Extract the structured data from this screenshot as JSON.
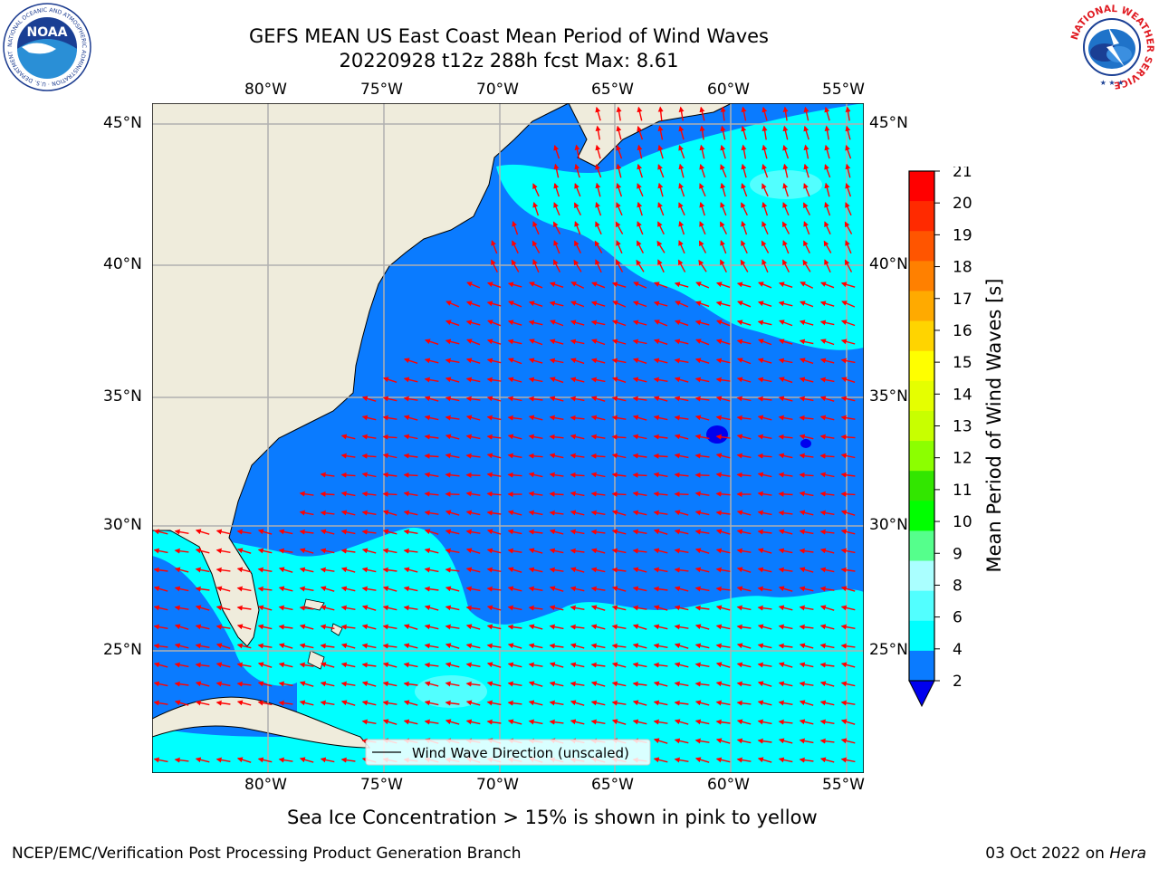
{
  "header": {
    "title_line1": "GEFS MEAN US East Coast Mean Period of Wind Waves",
    "title_line2": "20220928 t12z 288h fcst   Max: 8.61",
    "noaa_logo": {
      "center_text": "NOAA",
      "ring_text": "NATIONAL OCEANIC AND ATMOSPHERIC ADMINISTRATION · U.S. DEPARTMENT OF COMMERCE"
    },
    "nws_logo": {
      "ring_text": "NATIONAL WEATHER SERVICE"
    }
  },
  "map": {
    "lon_labels": [
      "80°W",
      "75°W",
      "70°W",
      "65°W",
      "60°W",
      "55°W"
    ],
    "lat_labels": [
      "45°N",
      "40°N",
      "35°N",
      "30°N",
      "25°N"
    ],
    "legend_label": "Wind Wave Direction (unscaled)",
    "colors": {
      "land": "#efecdc",
      "period_2_4": "#0a7bff",
      "period_4_6": "#00ffff",
      "period_6_8": "#52ffff",
      "period_lt_2": "#0000ee",
      "arrows": "#ff0000",
      "gridlines": "#b0b0b0"
    }
  },
  "colorbar": {
    "label": "Mean Period of Wind Waves [s]",
    "ticks": [
      "21",
      "20",
      "19",
      "18",
      "17",
      "16",
      "15",
      "14",
      "13",
      "12",
      "11",
      "10",
      "9",
      "8",
      "6",
      "4",
      "2"
    ],
    "colors_top_to_bottom": [
      "#ff0000",
      "#ff2a00",
      "#ff5500",
      "#ff8000",
      "#ffaa00",
      "#ffd400",
      "#ffff00",
      "#e5ff00",
      "#c8ff00",
      "#8cff00",
      "#32e600",
      "#00ff00",
      "#55ff8c",
      "#aaffff",
      "#52ffff",
      "#00ffff",
      "#0a7bff"
    ],
    "extend_min_color": "#0000ee"
  },
  "caption": "Sea Ice Concentration > 15% is shown in pink to yellow",
  "footer": {
    "left": "NCEP/EMC/Verification Post Processing Product Generation Branch",
    "right_prefix": "03 Oct 2022 on ",
    "right_host": "Hera"
  }
}
